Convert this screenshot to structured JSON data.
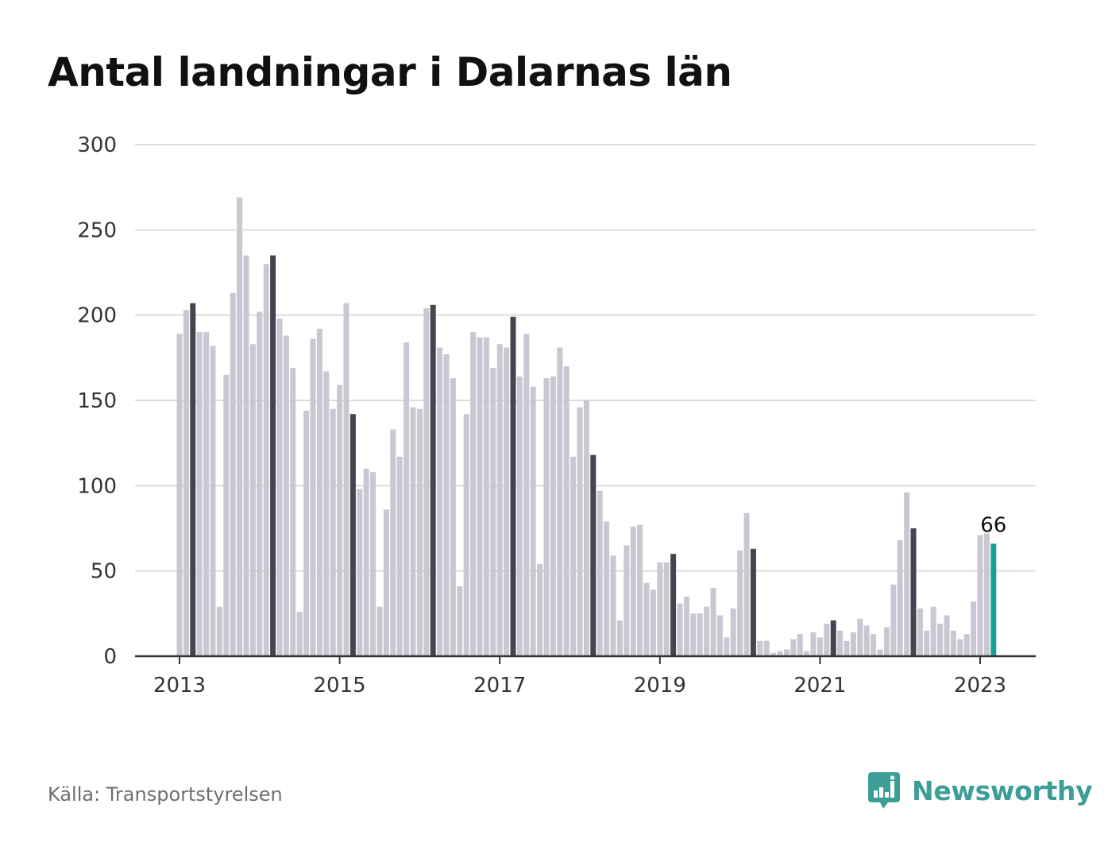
{
  "title": "Antal landningar i Dalarnas län",
  "source": "Källa: Transportstyrelsen",
  "brand": {
    "name": "Newsworthy",
    "icon": "newsworthy-logo-icon",
    "color": "#3c9e97"
  },
  "chart_data": {
    "type": "bar",
    "title": "Antal landningar i Dalarnas län",
    "xlabel": "",
    "ylabel": "",
    "ylim": [
      0,
      300
    ],
    "yticks": [
      "0",
      "50",
      "100",
      "150",
      "200",
      "250",
      "300"
    ],
    "xticks": [
      "2013",
      "2015",
      "2017",
      "2019",
      "2021",
      "2023"
    ],
    "grid": true,
    "legend": "none",
    "colors": {
      "default": "#c9c8d2",
      "march": "#46454f",
      "latest": "#19a096"
    },
    "start_month": "2013-01",
    "values": [
      189,
      203,
      207,
      190,
      190,
      182,
      29,
      165,
      213,
      269,
      235,
      183,
      202,
      230,
      235,
      198,
      188,
      169,
      26,
      144,
      186,
      192,
      167,
      145,
      159,
      207,
      142,
      98,
      110,
      108,
      29,
      86,
      133,
      117,
      184,
      146,
      145,
      204,
      206,
      181,
      177,
      163,
      41,
      142,
      190,
      187,
      187,
      169,
      183,
      181,
      199,
      164,
      189,
      158,
      54,
      163,
      164,
      181,
      170,
      117,
      146,
      150,
      118,
      97,
      79,
      59,
      21,
      65,
      76,
      77,
      43,
      39,
      55,
      55,
      60,
      31,
      35,
      25,
      25,
      29,
      40,
      24,
      11,
      28,
      62,
      84,
      63,
      9,
      9,
      2,
      3,
      4,
      10,
      13,
      3,
      14,
      11,
      19,
      21,
      15,
      9,
      14,
      22,
      18,
      13,
      4,
      17,
      42,
      68,
      96,
      75,
      28,
      15,
      29,
      19,
      24,
      15,
      10,
      13,
      32,
      71,
      72,
      66
    ],
    "data_labels": [
      {
        "month": "2023-03",
        "value": 66,
        "text": "66"
      }
    ]
  }
}
